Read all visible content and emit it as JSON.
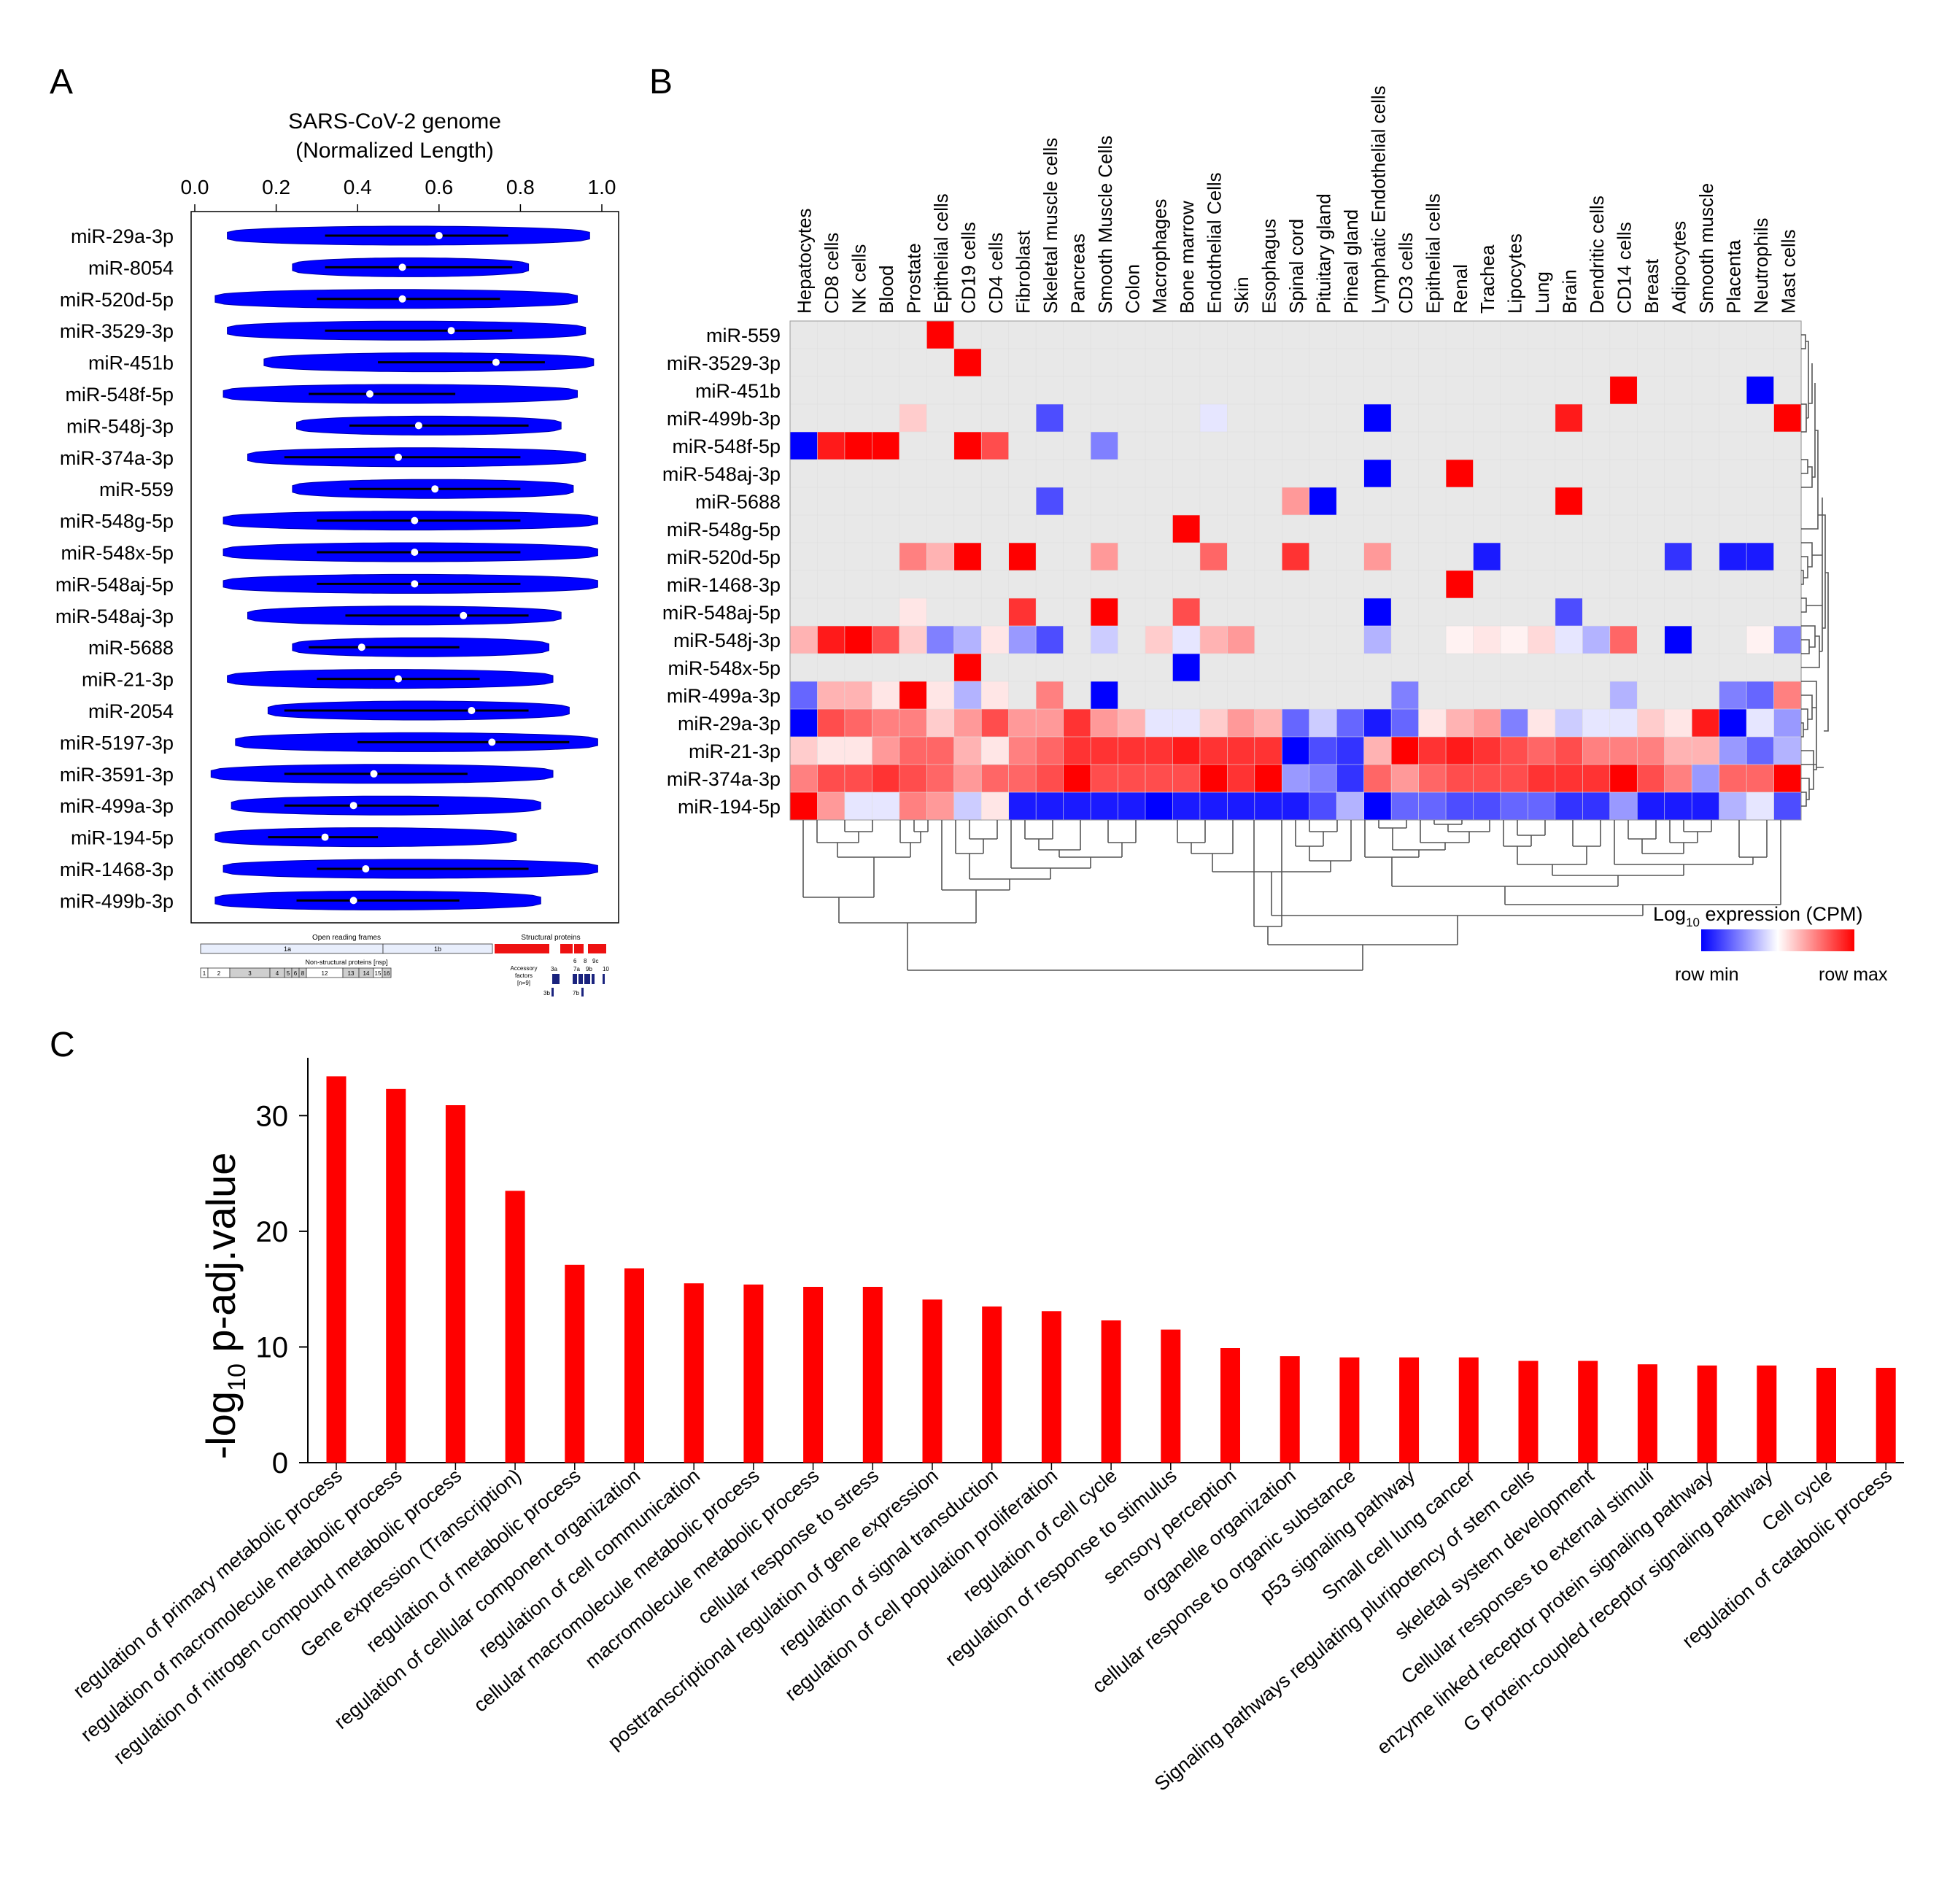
{
  "colors": {
    "violin": "#0000ff",
    "bar": "#ff0000",
    "heat_low": "#0000ff",
    "heat_mid": "#ffffff",
    "heat_high": "#ff0000",
    "heat_na": "#e8e8e8",
    "axis": "#000000"
  },
  "panels": {
    "a": "A",
    "b": "B",
    "c": "C"
  },
  "chart_data": [
    {
      "type": "violin",
      "title_line1": "SARS-CoV-2 genome",
      "title_line2": "(Normalized Length)",
      "xlim": [
        0,
        1
      ],
      "ticks": [
        "0.0",
        "0.2",
        "0.4",
        "0.6",
        "0.8",
        "1.0"
      ],
      "tick_values": [
        0,
        0.2,
        0.4,
        0.6,
        0.8,
        1.0
      ],
      "rows": [
        {
          "label": "miR-29a-3p",
          "min": 0.08,
          "max": 0.97,
          "q1": 0.32,
          "q3": 0.77,
          "median": 0.6
        },
        {
          "label": "miR-8054",
          "min": 0.24,
          "max": 0.82,
          "q1": 0.32,
          "q3": 0.78,
          "median": 0.51
        },
        {
          "label": "miR-520d-5p",
          "min": 0.05,
          "max": 0.94,
          "q1": 0.3,
          "q3": 0.75,
          "median": 0.51
        },
        {
          "label": "miR-3529-3p",
          "min": 0.08,
          "max": 0.96,
          "q1": 0.32,
          "q3": 0.78,
          "median": 0.63
        },
        {
          "label": "miR-451b",
          "min": 0.17,
          "max": 0.98,
          "q1": 0.45,
          "q3": 0.86,
          "median": 0.74
        },
        {
          "label": "miR-548f-5p",
          "min": 0.07,
          "max": 0.94,
          "q1": 0.28,
          "q3": 0.64,
          "median": 0.43
        },
        {
          "label": "miR-548j-3p",
          "min": 0.25,
          "max": 0.9,
          "q1": 0.38,
          "q3": 0.82,
          "median": 0.55
        },
        {
          "label": "miR-374a-3p",
          "min": 0.13,
          "max": 0.96,
          "q1": 0.22,
          "q3": 0.8,
          "median": 0.5
        },
        {
          "label": "miR-559",
          "min": 0.24,
          "max": 0.93,
          "q1": 0.38,
          "q3": 0.8,
          "median": 0.59
        },
        {
          "label": "miR-548g-5p",
          "min": 0.07,
          "max": 0.99,
          "q1": 0.3,
          "q3": 0.8,
          "median": 0.54
        },
        {
          "label": "miR-548x-5p",
          "min": 0.07,
          "max": 0.99,
          "q1": 0.3,
          "q3": 0.8,
          "median": 0.54
        },
        {
          "label": "miR-548aj-5p",
          "min": 0.07,
          "max": 0.99,
          "q1": 0.3,
          "q3": 0.8,
          "median": 0.54
        },
        {
          "label": "miR-548aj-3p",
          "min": 0.13,
          "max": 0.9,
          "q1": 0.37,
          "q3": 0.82,
          "median": 0.66
        },
        {
          "label": "miR-5688",
          "min": 0.24,
          "max": 0.87,
          "q1": 0.28,
          "q3": 0.65,
          "median": 0.41
        },
        {
          "label": "miR-21-3p",
          "min": 0.08,
          "max": 0.88,
          "q1": 0.3,
          "q3": 0.7,
          "median": 0.5
        },
        {
          "label": "miR-2054",
          "min": 0.18,
          "max": 0.92,
          "q1": 0.22,
          "q3": 0.82,
          "median": 0.68
        },
        {
          "label": "miR-5197-3p",
          "min": 0.1,
          "max": 0.99,
          "q1": 0.4,
          "q3": 0.92,
          "median": 0.73
        },
        {
          "label": "miR-3591-3p",
          "min": 0.04,
          "max": 0.88,
          "q1": 0.22,
          "q3": 0.67,
          "median": 0.44
        },
        {
          "label": "miR-499a-3p",
          "min": 0.09,
          "max": 0.85,
          "q1": 0.22,
          "q3": 0.6,
          "median": 0.39
        },
        {
          "label": "miR-194-5p",
          "min": 0.05,
          "max": 0.79,
          "q1": 0.18,
          "q3": 0.45,
          "median": 0.32
        },
        {
          "label": "miR-1468-3p",
          "min": 0.07,
          "max": 0.99,
          "q1": 0.3,
          "q3": 0.82,
          "median": 0.42
        },
        {
          "label": "miR-499b-3p",
          "min": 0.05,
          "max": 0.85,
          "q1": 0.25,
          "q3": 0.65,
          "median": 0.39
        }
      ],
      "genome_map": {
        "orf_label": "Open reading frames",
        "struct_label": "Structural proteins",
        "orf_1a": "1a",
        "orf_1b": "1b",
        "nsp_label": "Non-structural proteins [nsp]",
        "nsp_numbers": [
          "1",
          "2",
          "3",
          "4",
          "5",
          "6",
          "8",
          "12",
          "13",
          "14",
          "15",
          "16"
        ],
        "accessory_label1": "Accessory",
        "accessory_label2": "factors",
        "accessory_label3": "[n=9]",
        "acc_3a": "3a",
        "acc_3b": "3b",
        "acc_6": "6",
        "acc_8": "8",
        "acc_9c": "9c",
        "acc_7a": "7a",
        "acc_9b": "9b",
        "acc_10": "10",
        "acc_7b": "7b"
      }
    },
    {
      "type": "heatmap",
      "columns": [
        "Hepatocytes",
        "CD8 cells",
        "NK cells",
        "Blood",
        "Prostate",
        "Epithelial cells",
        "CD19 cells",
        "CD4 cells",
        "Fibroblast",
        "Skeletal muscle cells",
        "Pancreas",
        "Smooth Muscle Cells",
        "Colon",
        "Macrophages",
        "Bone marrow",
        "Endothelial Cells",
        "Skin",
        "Esophagus",
        "Spinal cord",
        "Pituitary gland",
        "Pineal gland",
        "Lymphatic Endothelial cells",
        "CD3 cells",
        "Epithelial cells",
        "Renal",
        "Trachea",
        "Lipocytes",
        "Lung",
        "Brain",
        "Dendritic cells",
        "CD14 cells",
        "Breast",
        "Adipocytes",
        "Smooth muscle",
        "Placenta",
        "Neutrophils",
        "Mast cells"
      ],
      "rows": [
        "miR-559",
        "miR-3529-3p",
        "miR-451b",
        "miR-499b-3p",
        "miR-548f-5p",
        "miR-548aj-3p",
        "miR-5688",
        "miR-548g-5p",
        "miR-520d-5p",
        "miR-1468-3p",
        "miR-548aj-5p",
        "miR-548j-3p",
        "miR-548x-5p",
        "miR-499a-3p",
        "miR-29a-3p",
        "miR-21-3p",
        "miR-374a-3p",
        "miR-194-5p"
      ],
      "values_scale": "-1 = row min, 0 = mid, 1 = row max, null = no expression",
      "values": [
        [
          null,
          null,
          null,
          null,
          null,
          1,
          null,
          null,
          null,
          null,
          null,
          null,
          null,
          null,
          null,
          null,
          null,
          null,
          null,
          null,
          null,
          null,
          null,
          null,
          null,
          null,
          null,
          null,
          null,
          null,
          null,
          null,
          null,
          null,
          null,
          null,
          null
        ],
        [
          null,
          null,
          null,
          null,
          null,
          null,
          1,
          null,
          null,
          null,
          null,
          null,
          null,
          null,
          null,
          null,
          null,
          null,
          null,
          null,
          null,
          null,
          null,
          null,
          null,
          null,
          null,
          null,
          null,
          null,
          null,
          null,
          null,
          null,
          null,
          null,
          null
        ],
        [
          null,
          null,
          null,
          null,
          null,
          null,
          null,
          null,
          null,
          null,
          null,
          null,
          null,
          null,
          null,
          null,
          null,
          null,
          null,
          null,
          null,
          null,
          null,
          null,
          null,
          null,
          null,
          null,
          null,
          null,
          1,
          null,
          null,
          null,
          null,
          -1,
          null
        ],
        [
          null,
          null,
          null,
          null,
          0.2,
          null,
          null,
          null,
          null,
          -0.7,
          null,
          null,
          null,
          null,
          null,
          -0.1,
          null,
          null,
          null,
          null,
          null,
          -1,
          null,
          null,
          null,
          null,
          null,
          null,
          0.9,
          null,
          null,
          null,
          null,
          null,
          null,
          null,
          1
        ],
        [
          -1,
          0.9,
          1,
          1,
          null,
          null,
          1,
          0.7,
          null,
          null,
          null,
          -0.5,
          null,
          null,
          null,
          null,
          null,
          null,
          null,
          null,
          null,
          null,
          null,
          null,
          null,
          null,
          null,
          null,
          null,
          null,
          null,
          null,
          null,
          null,
          null,
          null,
          null
        ],
        [
          null,
          null,
          null,
          null,
          null,
          null,
          null,
          null,
          null,
          null,
          null,
          null,
          null,
          null,
          null,
          null,
          null,
          null,
          null,
          null,
          null,
          -1,
          null,
          null,
          1,
          null,
          null,
          null,
          null,
          null,
          null,
          null,
          null,
          null,
          null,
          null,
          null
        ],
        [
          null,
          null,
          null,
          null,
          null,
          null,
          null,
          null,
          null,
          -0.7,
          null,
          null,
          null,
          null,
          null,
          null,
          null,
          null,
          0.4,
          -1,
          null,
          null,
          null,
          null,
          null,
          null,
          null,
          null,
          1,
          null,
          null,
          null,
          null,
          null,
          null,
          null,
          null
        ],
        [
          null,
          null,
          null,
          null,
          null,
          null,
          null,
          null,
          null,
          null,
          null,
          null,
          null,
          null,
          1,
          null,
          null,
          null,
          null,
          null,
          null,
          null,
          null,
          null,
          null,
          null,
          null,
          null,
          null,
          null,
          null,
          null,
          null,
          null,
          null,
          null,
          null
        ],
        [
          null,
          null,
          null,
          null,
          0.5,
          0.3,
          1,
          null,
          1,
          null,
          null,
          0.4,
          null,
          null,
          null,
          0.6,
          null,
          null,
          0.8,
          null,
          null,
          0.4,
          null,
          null,
          null,
          -0.9,
          null,
          null,
          null,
          null,
          null,
          null,
          -0.8,
          null,
          -0.9,
          -0.9,
          null
        ],
        [
          null,
          null,
          null,
          null,
          null,
          null,
          null,
          null,
          null,
          null,
          null,
          null,
          null,
          null,
          null,
          null,
          null,
          null,
          null,
          null,
          null,
          null,
          null,
          null,
          1,
          null,
          null,
          null,
          null,
          null,
          null,
          null,
          null,
          null,
          null,
          null,
          null
        ],
        [
          null,
          null,
          null,
          null,
          0.1,
          null,
          null,
          null,
          0.8,
          null,
          null,
          1,
          null,
          null,
          0.7,
          null,
          null,
          null,
          null,
          null,
          null,
          -1,
          null,
          null,
          null,
          null,
          null,
          null,
          -0.7,
          null,
          null,
          null,
          null,
          null,
          null,
          null,
          null
        ],
        [
          0.3,
          0.9,
          1,
          0.7,
          0.2,
          -0.5,
          -0.3,
          0.1,
          -0.4,
          -0.7,
          null,
          -0.2,
          null,
          0.2,
          -0.1,
          0.3,
          0.4,
          null,
          null,
          null,
          null,
          -0.3,
          null,
          null,
          0.05,
          0.1,
          0.05,
          0.15,
          -0.1,
          -0.3,
          0.6,
          null,
          -1,
          null,
          null,
          0.05,
          -0.5
        ],
        [
          null,
          null,
          null,
          null,
          null,
          null,
          1,
          null,
          null,
          null,
          null,
          null,
          null,
          null,
          -1,
          null,
          null,
          null,
          null,
          null,
          null,
          null,
          null,
          null,
          null,
          null,
          null,
          null,
          null,
          null,
          null,
          null,
          null,
          null,
          null,
          null,
          null
        ],
        [
          -0.6,
          0.3,
          0.3,
          0.1,
          1,
          0.1,
          -0.3,
          0.1,
          null,
          0.5,
          null,
          -1,
          null,
          null,
          null,
          null,
          null,
          null,
          null,
          null,
          null,
          null,
          -0.5,
          null,
          null,
          null,
          null,
          null,
          null,
          null,
          -0.3,
          null,
          null,
          null,
          -0.5,
          -0.6,
          0.5
        ],
        [
          -1,
          0.7,
          0.6,
          0.5,
          0.5,
          0.2,
          0.4,
          0.7,
          0.4,
          0.4,
          0.8,
          0.4,
          0.3,
          -0.1,
          -0.1,
          0.2,
          0.4,
          0.3,
          -0.6,
          -0.2,
          -0.6,
          -0.9,
          -0.6,
          0.1,
          0.3,
          0.4,
          -0.5,
          0.1,
          -0.2,
          -0.1,
          -0.1,
          0.2,
          0.1,
          0.9,
          -1,
          -0.1,
          -0.4
        ],
        [
          0.2,
          0.1,
          0.1,
          0.4,
          0.6,
          0.6,
          0.3,
          0.1,
          0.5,
          0.6,
          0.8,
          0.8,
          0.8,
          0.8,
          0.9,
          0.8,
          0.8,
          0.8,
          -1,
          -0.7,
          -0.8,
          0.3,
          1,
          0.8,
          0.9,
          0.8,
          0.7,
          0.6,
          0.7,
          0.5,
          0.5,
          0.5,
          0.3,
          0.3,
          -0.4,
          -0.6,
          -0.3
        ],
        [
          0.5,
          0.7,
          0.7,
          0.8,
          0.7,
          0.6,
          0.4,
          0.6,
          0.6,
          0.7,
          1,
          0.7,
          0.7,
          0.7,
          0.7,
          1,
          0.8,
          1,
          -0.4,
          -0.5,
          -0.8,
          0.6,
          0.4,
          0.6,
          0.7,
          0.7,
          0.7,
          0.8,
          0.8,
          0.8,
          1,
          0.7,
          0.5,
          -0.4,
          0.6,
          0.6,
          1
        ],
        [
          1,
          0.4,
          -0.1,
          -0.1,
          0.5,
          0.4,
          -0.2,
          0.1,
          -0.9,
          -0.9,
          -0.9,
          -0.9,
          -0.9,
          -1,
          -0.9,
          -0.9,
          -0.9,
          -0.9,
          -0.9,
          -0.7,
          -0.3,
          -1,
          -0.6,
          -0.6,
          -0.7,
          -0.7,
          -0.6,
          -0.6,
          -0.8,
          -0.8,
          -0.4,
          -0.9,
          -0.9,
          -0.9,
          -0.3,
          -0.1,
          -0.7
        ]
      ],
      "legend_title_base": "Log",
      "legend_title_sub": "10",
      "legend_title_rest": " expression (CPM)",
      "legend_min": "row min",
      "legend_max": "row max"
    },
    {
      "type": "bar",
      "ylabel_pre": "-log",
      "ylabel_sub": "10",
      "ylabel_post": " p-adj.value",
      "ylim": [
        0,
        35
      ],
      "yticks": [
        0,
        10,
        20,
        30
      ],
      "categories": [
        "regulation of primary metabolic process",
        "regulation of macromolecule metabolic process",
        "regulation of nitrogen compound metabolic process",
        "Gene expression (Transcription)",
        "regulation of metabolic process",
        "regulation of cellular component organization",
        "regulation of cell communication",
        "cellular macromolecule metabolic process",
        "macromolecule metabolic process",
        "cellular response to stress",
        "posttranscriptional regulation of gene expression",
        "regulation of signal transduction",
        "regulation of cell population proliferation",
        "regulation of cell cycle",
        "regulation of response to stimulus",
        "sensory perception",
        "organelle organization",
        "cellular response to organic substance",
        "p53 signaling pathway",
        "Small cell lung cancer",
        "Signaling pathways regulating pluripotency of stem cells",
        "skeletal system development",
        "Cellular responses to external stimuli",
        "enzyme linked receptor protein signaling pathway",
        "G protein-coupled receptor signaling pathway",
        "Cell cycle",
        "regulation of catabolic process"
      ],
      "values": [
        33.4,
        32.3,
        30.9,
        23.5,
        17.1,
        16.8,
        15.5,
        15.4,
        15.2,
        15.2,
        14.1,
        13.5,
        13.1,
        12.3,
        11.5,
        9.9,
        9.2,
        9.1,
        9.1,
        9.1,
        8.8,
        8.8,
        8.5,
        8.4,
        8.4,
        8.2,
        8.2
      ]
    }
  ]
}
